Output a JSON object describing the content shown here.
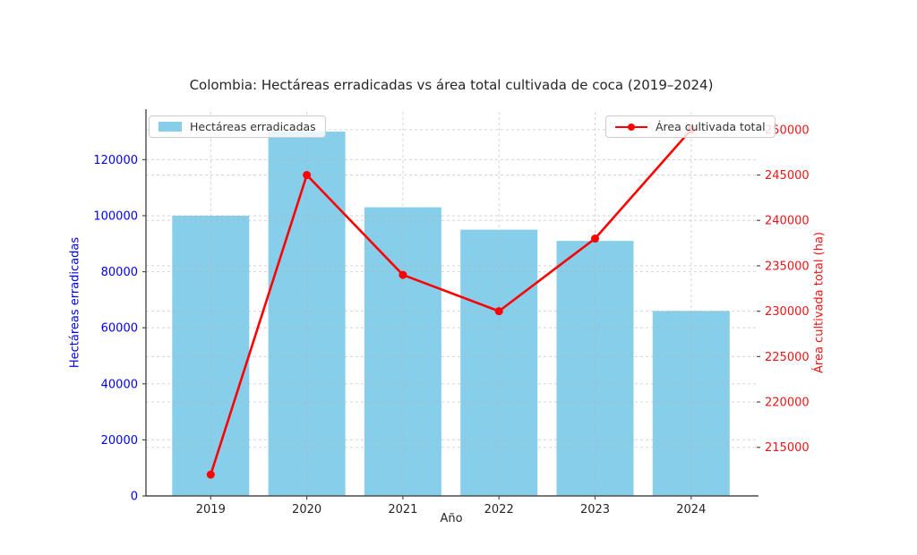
{
  "title": "Colombia: Hectáreas erradicadas vs área total cultivada de coca (2019–2024)",
  "chart_data": {
    "type": "combo_bar_line",
    "categories": [
      "2019",
      "2020",
      "2021",
      "2022",
      "2023",
      "2024"
    ],
    "xlabel": "Año",
    "series": [
      {
        "name": "Hectáreas erradicadas",
        "type": "bar",
        "axis": "left",
        "color": "#87CEEB",
        "values": [
          100000,
          130000,
          103000,
          95000,
          91000,
          66000
        ]
      },
      {
        "name": "Área cultivada total",
        "type": "line",
        "axis": "right",
        "color": "#ff0000",
        "marker": "circle",
        "values": [
          212000,
          245000,
          234000,
          230000,
          238000,
          250000
        ]
      }
    ],
    "left_axis": {
      "label": "Hectáreas erradicadas",
      "color": "#0000f0",
      "ticks": [
        0,
        20000,
        40000,
        60000,
        80000,
        100000,
        120000
      ],
      "ylim": [
        0,
        138000
      ]
    },
    "right_axis": {
      "label": "Área cultivada total (ha)",
      "color": "#f21414",
      "ticks": [
        215000,
        220000,
        225000,
        230000,
        235000,
        240000,
        245000,
        250000
      ],
      "ylim": [
        209650,
        252250
      ]
    },
    "grid": true,
    "legend": [
      {
        "label": "Hectáreas erradicadas",
        "position": "upper-left"
      },
      {
        "label": "Área cultivada total",
        "position": "upper-right"
      }
    ]
  }
}
